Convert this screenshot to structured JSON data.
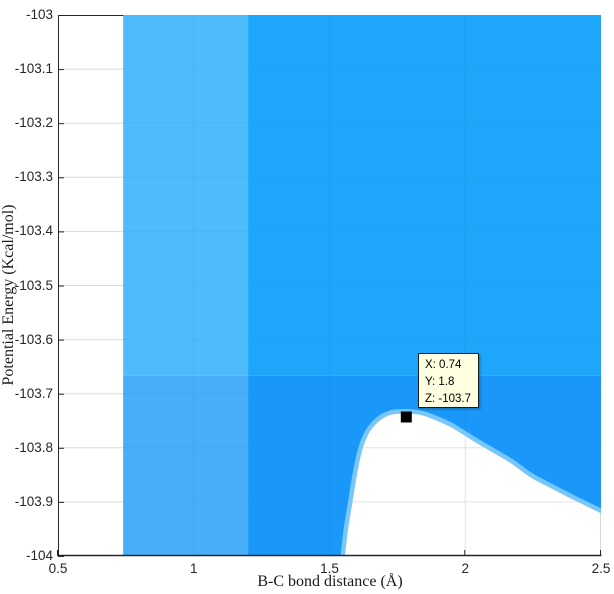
{
  "figure": {
    "x_axis": {
      "label": "B-C bond distance (Å)",
      "tick_labels": [
        "0.5",
        "1",
        "1.5",
        "2",
        "2.5"
      ],
      "tick_values": [
        0.5,
        1,
        1.5,
        2,
        2.5
      ],
      "range": [
        0.5,
        2.5
      ]
    },
    "y_axis": {
      "label": "Potential Energy (Kcal/mol)",
      "tick_labels": [
        "-103",
        "-103.1",
        "-103.2",
        "-103.3",
        "-103.4",
        "-103.5",
        "-103.6",
        "-103.7",
        "-103.8",
        "-103.9",
        "-104"
      ],
      "tick_values": [
        -103,
        -103.1,
        -103.2,
        -103.3,
        -103.4,
        -103.5,
        -103.6,
        -103.7,
        -103.8,
        -103.9,
        -104
      ],
      "range": [
        -104,
        -103
      ]
    },
    "datatip": {
      "lines": [
        "X: 0.74",
        "Y: 1.8",
        "Z: -103.7"
      ]
    },
    "marker": {
      "x": 1.783,
      "z": -103.743,
      "size": 11
    },
    "colors": {
      "background": "#FFFFFF",
      "grid": "#E3E3E3",
      "axis": "#262626",
      "box_right": "#D9D9D9",
      "edge_band": "#79C6FB",
      "marker": "#000000",
      "datatip_bg": "#FFFFE1",
      "datatip_border": "#1A1A1A"
    }
  },
  "chart_data": {
    "type": "area",
    "title": "",
    "xlabel": "B-C bond distance (Å)",
    "ylabel": "Potential Energy (Kcal/mol)",
    "xlim": [
      0.5,
      2.5
    ],
    "ylim": [
      -104,
      -103
    ],
    "grid": true,
    "legend": false,
    "note": "3D potential-energy surface viewed edge-on; blue filled area is the surface, white notch under the curved boundary is the region below the surface edge",
    "surface": {
      "x_start": 0.74,
      "x_end": 2.5,
      "z_top": -103,
      "z_bottom": -104,
      "shade_boundary_x": 1.2,
      "shade_boundary_z": -103.667,
      "regions": [
        {
          "name": "upper-left",
          "x": [
            0.74,
            1.2
          ],
          "z": [
            -103.667,
            -103
          ],
          "color": "#4EBBFA"
        },
        {
          "name": "upper-right",
          "x": [
            1.2,
            2.5
          ],
          "z": [
            -103.667,
            -103
          ],
          "color": "#1EA7FA"
        },
        {
          "name": "lower-left",
          "x": [
            0.74,
            1.2
          ],
          "z": [
            -104,
            -103.667
          ],
          "color": "#47AEFA"
        },
        {
          "name": "lower-right",
          "x": [
            1.2,
            2.5
          ],
          "z": [
            -104,
            -103.667
          ],
          "color": "#1A98FA"
        }
      ]
    },
    "boundary_curve": {
      "x": [
        1.557,
        1.568,
        1.583,
        1.598,
        1.616,
        1.638,
        1.664,
        1.693,
        1.726,
        1.76,
        1.796,
        1.833,
        1.87,
        1.91,
        1.951,
        1.999,
        2.054,
        2.109,
        2.172,
        2.238,
        2.312,
        2.386,
        2.459,
        2.5
      ],
      "z": [
        -104,
        -103.952,
        -103.906,
        -103.859,
        -103.813,
        -103.78,
        -103.76,
        -103.747,
        -103.739,
        -103.737,
        -103.737,
        -103.739,
        -103.745,
        -103.753,
        -103.763,
        -103.778,
        -103.795,
        -103.811,
        -103.83,
        -103.854,
        -103.874,
        -103.893,
        -103.911,
        -103.921
      ]
    },
    "datatip_point": {
      "X": 0.74,
      "Y": 1.8,
      "Z": -103.7
    }
  }
}
